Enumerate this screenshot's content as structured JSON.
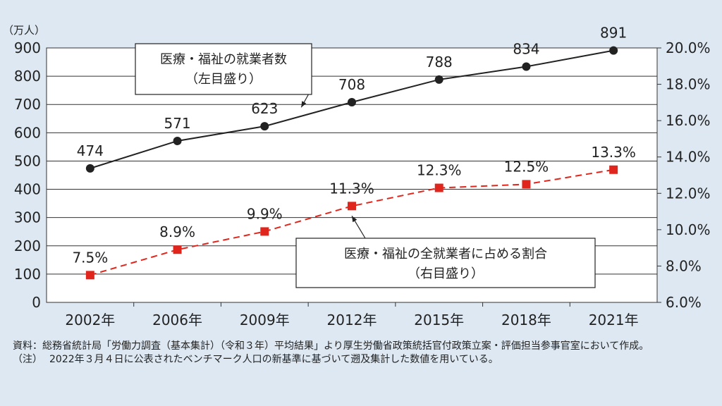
{
  "chart_data": {
    "type": "line",
    "categories": [
      "2002年",
      "2006年",
      "2009年",
      "2012年",
      "2015年",
      "2018年",
      "2021年"
    ],
    "y_left_unit": "（万人）",
    "y_left_ticks": [
      "0",
      "100",
      "200",
      "300",
      "400",
      "500",
      "600",
      "700",
      "800",
      "900"
    ],
    "y_left_range": [
      0,
      900
    ],
    "y_right_ticks": [
      "6.0%",
      "8.0%",
      "10.0%",
      "12.0%",
      "14.0%",
      "16.0%",
      "18.0%",
      "20.0%"
    ],
    "y_right_range": [
      6,
      20
    ],
    "grid": true,
    "series": [
      {
        "name_line1": "医療・福祉の就業者数",
        "name_line2": "（左目盛り）",
        "axis": "left",
        "values": [
          474,
          571,
          623,
          708,
          788,
          834,
          891
        ],
        "labels": [
          "474",
          "571",
          "623",
          "708",
          "788",
          "834",
          "891"
        ],
        "color": "#222222",
        "marker": "circle",
        "line_style": "solid"
      },
      {
        "name_line1": "医療・福祉の全就業者に占める割合",
        "name_line2": "（右目盛り）",
        "axis": "right",
        "values": [
          7.5,
          8.9,
          9.9,
          11.3,
          12.3,
          12.5,
          13.3
        ],
        "labels": [
          "7.5%",
          "8.9%",
          "9.9%",
          "11.3%",
          "12.3%",
          "12.5%",
          "13.3%"
        ],
        "color": "#e0261c",
        "marker": "square",
        "line_style": "dashed"
      }
    ]
  },
  "notes": {
    "source_label": "資料：",
    "source_text": "総務省統計局「労働力調査（基本集計）（令和３年）平均結果」より厚生労働省政策統括官付政策立案・評価担当参事官室において作成。",
    "note_label": "（注）",
    "note_text": "2022年３月４日に公表されたベンチマーク人口の新基準に基づいて遡及集計した数値を用いている。"
  }
}
